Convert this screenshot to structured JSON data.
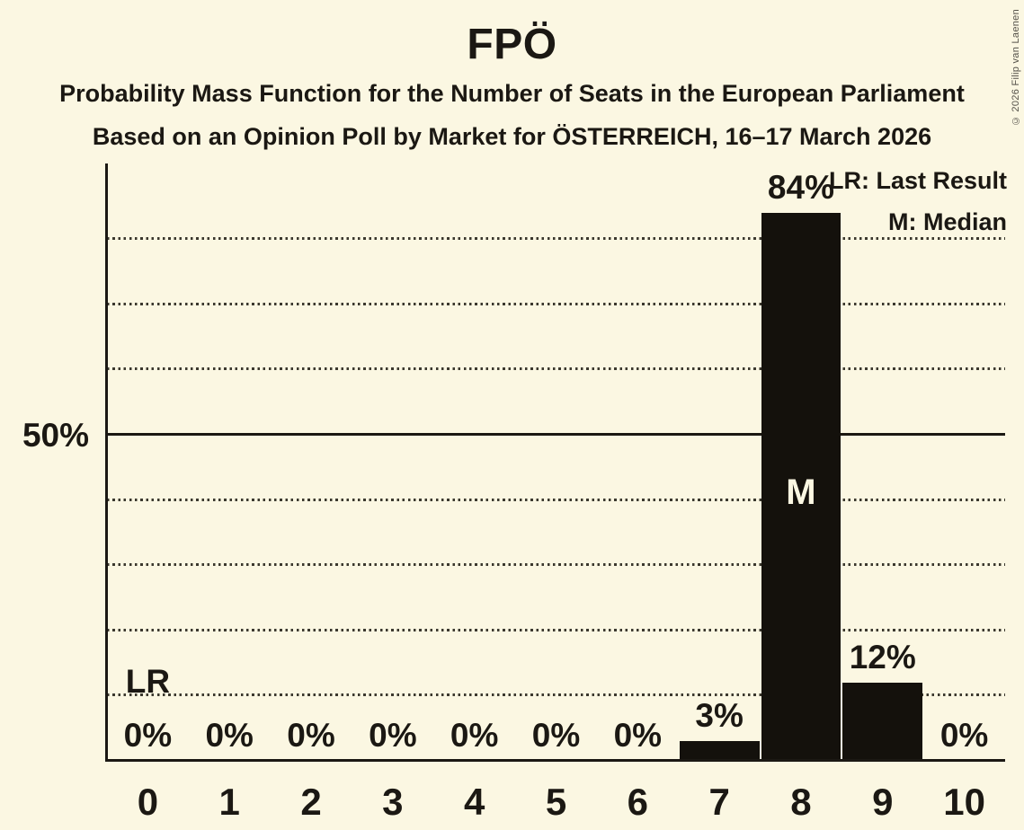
{
  "title": "FPÖ",
  "subtitles": [
    "Probability Mass Function for the Number of Seats in the European Parliament",
    "Based on an Opinion Poll by Market for ÖSTERREICH, 16–17 March 2026"
  ],
  "copyright": "© 2026 Filip van Laenen",
  "legend": {
    "lr_label": "LR: Last Result",
    "m_label": "M: Median"
  },
  "y_axis": {
    "label_50": "50%"
  },
  "annotations": {
    "last_result_text": "LR",
    "last_result_seat": 0,
    "median_text": "M",
    "median_seat": 8
  },
  "colors": {
    "background": "#FBF7E2",
    "bar": "#14110C",
    "text": "#1B1813",
    "grid": "#3B382E"
  },
  "chart_data": {
    "type": "bar",
    "title": "FPÖ",
    "categories": [
      "0",
      "1",
      "2",
      "3",
      "4",
      "5",
      "6",
      "7",
      "8",
      "9",
      "10"
    ],
    "values": [
      0,
      0,
      0,
      0,
      0,
      0,
      0,
      3,
      84,
      12,
      0
    ],
    "value_labels": [
      "0%",
      "0%",
      "0%",
      "0%",
      "0%",
      "0%",
      "0%",
      "3%",
      "84%",
      "12%",
      "0%"
    ],
    "xlabel": "",
    "ylabel": "",
    "ylim": [
      0,
      91
    ],
    "gridlines_pct": [
      10,
      20,
      30,
      40,
      60,
      70,
      80
    ],
    "solid_gridline_pct": 50,
    "grid_style": "dotted",
    "legend_position": "top-right",
    "legend_entries": [
      "LR: Last Result",
      "M: Median"
    ],
    "bar_color": "#14110C",
    "median_seat": 8,
    "last_result_seat": 0
  }
}
